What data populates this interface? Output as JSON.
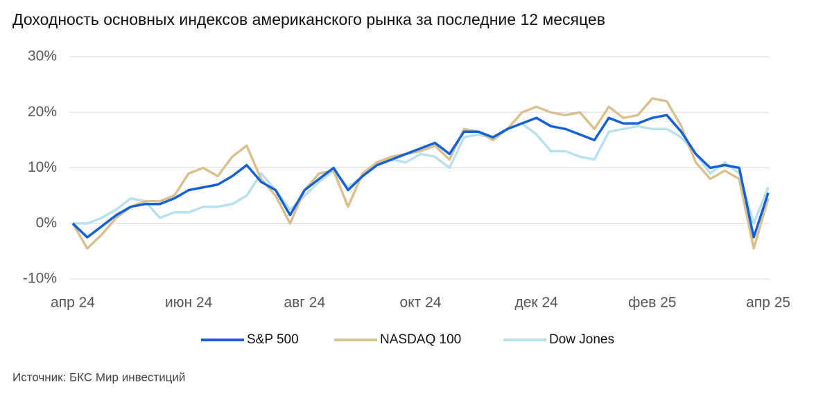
{
  "chart_data": {
    "type": "line",
    "title": "Доходность основных индексов американского рынка за последние 12 месяцев",
    "source": "Источник: БКС Мир инвестиций",
    "categories": [
      "апр 24",
      null,
      null,
      null,
      null,
      null,
      null,
      null,
      "июн 24",
      null,
      null,
      null,
      null,
      null,
      null,
      null,
      "авг 24",
      null,
      null,
      null,
      null,
      null,
      null,
      null,
      "окт 24",
      null,
      null,
      null,
      null,
      null,
      null,
      null,
      "дек 24",
      null,
      null,
      null,
      null,
      null,
      null,
      null,
      "фев 25",
      null,
      null,
      null,
      null,
      null,
      null,
      null,
      "апр 25"
    ],
    "series": [
      {
        "name": "S&P 500",
        "color": "#1560d4",
        "values": [
          0,
          -2.5,
          -0.5,
          1.5,
          3,
          3.5,
          3.5,
          4.5,
          6,
          6.5,
          7,
          8.5,
          10.5,
          7.5,
          6,
          1.5,
          6,
          8,
          10,
          6,
          8.5,
          10.5,
          11.5,
          12.5,
          13.5,
          14.5,
          12.5,
          16.5,
          16.5,
          15.5,
          17,
          18,
          19,
          17.5,
          17,
          16,
          15,
          19,
          18,
          18,
          19,
          19.5,
          16.5,
          12.5,
          10,
          10.5,
          10,
          -2.5,
          5.5
        ]
      },
      {
        "name": "NASDAQ 100",
        "color": "#d9c08f",
        "values": [
          0,
          -4.5,
          -2,
          1,
          3,
          4,
          4,
          5,
          9,
          10,
          8.5,
          12,
          14,
          8,
          5,
          0,
          6,
          9,
          9.5,
          3,
          9,
          11,
          12,
          12.5,
          13,
          14,
          11.5,
          17,
          16.5,
          15,
          17,
          20,
          21,
          20,
          19.5,
          20,
          17,
          21,
          19,
          19.5,
          22.5,
          22,
          17.5,
          11,
          8,
          9.5,
          8,
          -4.5,
          4.5
        ]
      },
      {
        "name": "Dow Jones",
        "color": "#b9e0ef",
        "values": [
          0,
          0,
          1,
          2.5,
          4.5,
          4,
          1,
          2,
          2,
          3,
          3,
          3.5,
          5,
          9,
          6,
          2.5,
          5,
          7.5,
          9.5,
          6.5,
          8.5,
          11,
          11.5,
          11,
          12.5,
          12,
          10,
          15.5,
          16,
          15.5,
          17,
          18,
          16,
          13,
          13,
          12,
          11.5,
          16.5,
          17,
          17.5,
          17,
          17,
          15.5,
          12.5,
          9,
          11,
          9,
          0,
          6.5
        ]
      }
    ],
    "ylim": [
      -10,
      30
    ],
    "yticks": [
      {
        "value": -10,
        "label": "-10%"
      },
      {
        "value": 0,
        "label": "0%"
      },
      {
        "value": 10,
        "label": "10%"
      },
      {
        "value": 20,
        "label": "20%"
      },
      {
        "value": 30,
        "label": "30%"
      }
    ],
    "grid": true,
    "legend": "bottom"
  }
}
